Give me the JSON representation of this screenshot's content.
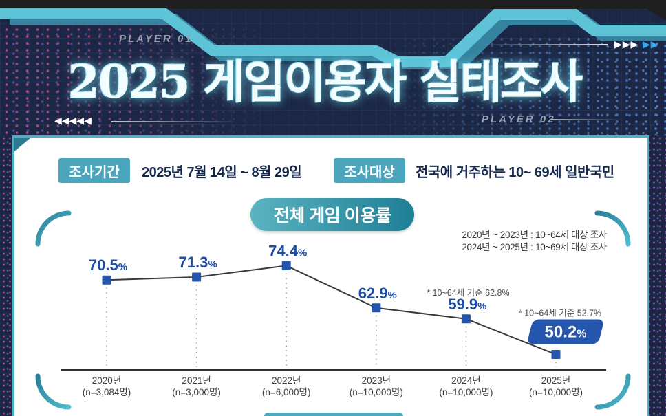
{
  "header": {
    "player1_label": "PLAYER 01",
    "player2_label": "PLAYER 02",
    "title": "2025 게임이용자 실태조사",
    "left_arrows": "◀◀◀◀◀",
    "right_arrows_white": "▶▶▶",
    "right_arrows_blue": "▶▶"
  },
  "survey_info": {
    "period_label": "조사기간",
    "period_value": "2025년 7월 14일 ~ 8월 29일",
    "target_label": "조사대상",
    "target_value": "전국에 거주하는 10~ 69세 일반국민"
  },
  "chart_data": {
    "type": "line",
    "title": "전체 게임 이용률",
    "categories": [
      "2020년",
      "2021년",
      "2022년",
      "2023년",
      "2024년",
      "2025년"
    ],
    "sample_sizes": [
      "(n=3,084명)",
      "(n=3,000명)",
      "(n=6,000명)",
      "(n=10,000명)",
      "(n=10,000명)",
      "(n=10,000명)"
    ],
    "values": [
      70.5,
      71.3,
      74.4,
      62.9,
      59.9,
      50.2
    ],
    "unit": "%",
    "ylim": [
      45,
      80
    ],
    "highlight_index": 5,
    "notes": [
      "2020년 ~ 2023년 : 10~64세 대상 조사",
      "2024년 ~ 2025년 : 10~69세 대상 조사"
    ],
    "annotations": [
      {
        "text": "* 10~64세 기준 62.8%",
        "point_index": 4
      },
      {
        "text": "* 10~64세 기준 52.7%",
        "point_index": 5
      }
    ],
    "line_color": "#3a3a3a",
    "marker_color": "#2355ac",
    "label_color": "#1c4da9",
    "highlight_badge_color": "#2456ad",
    "axis_color": "#2d2d2d",
    "guide_color": "#9c9c9c",
    "tick_color": "#3d3d3d",
    "annotation_color": "#4d4d4d"
  },
  "colors": {
    "background_navy": "#1b2745",
    "accent_cyan": "#5ec3d7",
    "teal_badge": "#4aa5bd",
    "frame_teal": "#2f8aa5",
    "panel_border": "#4db0c5"
  }
}
